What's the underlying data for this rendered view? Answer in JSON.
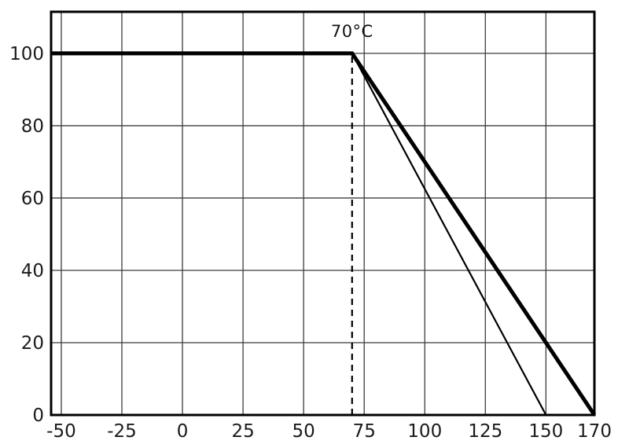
{
  "chart_data": {
    "type": "line",
    "title": "",
    "xlabel": "",
    "ylabel": "",
    "legend": "none",
    "grid": true,
    "axis": {
      "xmin": -54.2,
      "xmax": 170,
      "ymin": 0,
      "ymax": 111.5
    },
    "x_ticks": [
      -50,
      -25,
      0,
      25,
      50,
      75,
      100,
      125,
      150,
      170
    ],
    "y_ticks": [
      0,
      20,
      40,
      60,
      80,
      100
    ],
    "annotation": {
      "text": "70°C",
      "x": 70,
      "y": 106
    },
    "series": [
      {
        "name": "derating-curve-thick",
        "points": [
          [
            -50,
            100
          ],
          [
            70,
            100
          ],
          [
            170,
            0
          ]
        ],
        "width": 5,
        "dashed": false,
        "extend_to_left_frame": true
      },
      {
        "name": "derating-curve-thin",
        "points": [
          [
            70,
            100
          ],
          [
            150,
            0
          ]
        ],
        "width": 2.2,
        "dashed": false,
        "extend_to_left_frame": false
      },
      {
        "name": "reference-line-70c",
        "points": [
          [
            70,
            0
          ],
          [
            70,
            100
          ]
        ],
        "width": 2.2,
        "dashed": true,
        "extend_to_left_frame": false
      }
    ],
    "colors": {
      "line": "#000000",
      "grid": "#3c3c3c",
      "text": "#1b1b1b"
    }
  }
}
